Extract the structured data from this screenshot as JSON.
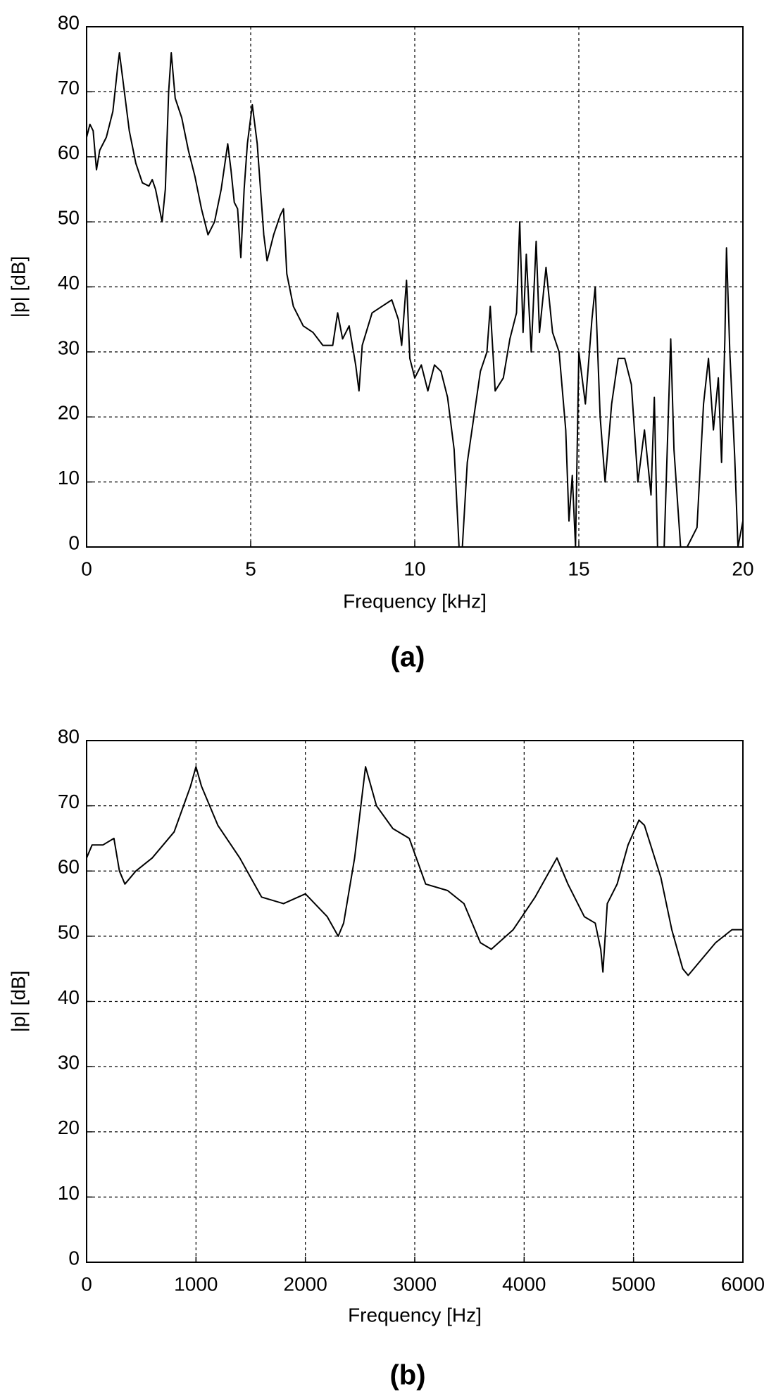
{
  "chart_data": [
    {
      "type": "line",
      "label": "(a)",
      "xlabel": "Frequency [kHz]",
      "ylabel": "|p| [dB]",
      "color": "#000000",
      "grid": true,
      "xlim": [
        0,
        20
      ],
      "xticks": [
        0,
        5,
        10,
        15,
        20
      ],
      "ylim": [
        0,
        80
      ],
      "yticks": [
        0,
        10,
        20,
        30,
        40,
        50,
        60,
        70,
        80
      ],
      "x": [
        0,
        0.1,
        0.2,
        0.3,
        0.4,
        0.6,
        0.8,
        0.95,
        1.0,
        1.1,
        1.3,
        1.5,
        1.7,
        1.9,
        2.0,
        2.1,
        2.3,
        2.4,
        2.5,
        2.58,
        2.7,
        2.9,
        3.1,
        3.3,
        3.5,
        3.7,
        3.9,
        4.1,
        4.3,
        4.4,
        4.5,
        4.6,
        4.7,
        4.8,
        4.9,
        5.05,
        5.2,
        5.4,
        5.5,
        5.7,
        5.9,
        6.0,
        6.1,
        6.3,
        6.6,
        6.9,
        7.2,
        7.5,
        7.65,
        7.8,
        8.0,
        8.2,
        8.3,
        8.4,
        8.7,
        9.0,
        9.3,
        9.5,
        9.6,
        9.75,
        9.85,
        10.0,
        10.2,
        10.4,
        10.6,
        10.8,
        11.0,
        11.2,
        11.35,
        11.45,
        11.6,
        11.8,
        12.0,
        12.2,
        12.3,
        12.45,
        12.7,
        12.9,
        13.1,
        13.2,
        13.3,
        13.4,
        13.55,
        13.7,
        13.8,
        14.0,
        14.2,
        14.4,
        14.6,
        14.7,
        14.8,
        14.9,
        15.0,
        15.2,
        15.4,
        15.5,
        15.65,
        15.8,
        16.0,
        16.2,
        16.4,
        16.6,
        16.8,
        17.0,
        17.2,
        17.3,
        17.4,
        17.6,
        17.8,
        17.9,
        18.1,
        18.3,
        18.6,
        18.8,
        18.95,
        19.1,
        19.25,
        19.35,
        19.45,
        19.5,
        19.6,
        19.75,
        19.85,
        20.0
      ],
      "values": [
        63,
        65,
        64,
        58,
        61,
        63,
        67,
        74,
        76,
        72,
        64,
        59,
        56,
        55.5,
        56.5,
        55,
        50,
        55,
        70,
        76,
        69,
        66,
        61,
        57,
        52,
        48,
        50,
        55,
        62,
        58,
        53,
        52,
        44.5,
        55,
        62,
        68,
        62,
        48,
        44,
        48,
        51,
        52,
        42,
        37,
        34,
        33,
        31,
        31,
        36,
        32,
        34,
        28,
        24,
        31,
        36,
        37,
        38,
        35,
        31,
        41,
        29,
        26,
        28,
        24,
        28,
        27,
        23,
        15,
        0,
        0,
        13,
        20,
        27,
        30,
        37,
        24,
        26,
        32,
        36,
        50,
        33,
        45,
        30,
        47,
        33,
        43,
        33,
        30,
        18,
        4,
        11,
        0,
        30,
        22,
        35,
        40,
        20,
        10,
        22,
        29,
        29,
        25,
        10,
        18,
        8,
        23,
        0,
        0,
        32,
        15,
        0,
        0,
        3,
        22,
        29,
        18,
        26,
        13,
        32,
        46,
        30,
        14,
        0,
        4
      ]
    },
    {
      "type": "line",
      "label": "(b)",
      "xlabel": "Frequency [Hz]",
      "ylabel": "|p| [dB]",
      "color": "#000000",
      "grid": true,
      "xlim": [
        0,
        6000
      ],
      "xticks": [
        0,
        1000,
        2000,
        3000,
        4000,
        5000,
        6000
      ],
      "ylim": [
        0,
        80
      ],
      "yticks": [
        0,
        10,
        20,
        30,
        40,
        50,
        60,
        70,
        80
      ],
      "x": [
        0,
        50,
        150,
        250,
        300,
        350,
        450,
        600,
        800,
        950,
        1000,
        1050,
        1200,
        1400,
        1600,
        1800,
        2000,
        2200,
        2300,
        2350,
        2450,
        2550,
        2650,
        2800,
        2950,
        3100,
        3300,
        3450,
        3600,
        3700,
        3900,
        4100,
        4300,
        4400,
        4550,
        4650,
        4700,
        4720,
        4760,
        4850,
        4950,
        5050,
        5100,
        5250,
        5350,
        5450,
        5500,
        5600,
        5750,
        5900,
        6000
      ],
      "values": [
        62,
        64,
        64,
        65,
        60,
        58,
        60,
        62,
        66,
        73,
        76,
        73,
        67,
        62,
        56,
        55,
        56.5,
        53,
        50,
        52,
        62,
        76,
        70,
        66.5,
        65,
        58,
        57,
        55,
        49,
        48,
        51,
        56,
        62,
        58,
        53,
        52,
        48,
        44.5,
        55,
        58,
        64,
        67.8,
        67,
        59,
        51,
        45,
        44,
        46,
        49,
        51,
        51
      ]
    }
  ]
}
